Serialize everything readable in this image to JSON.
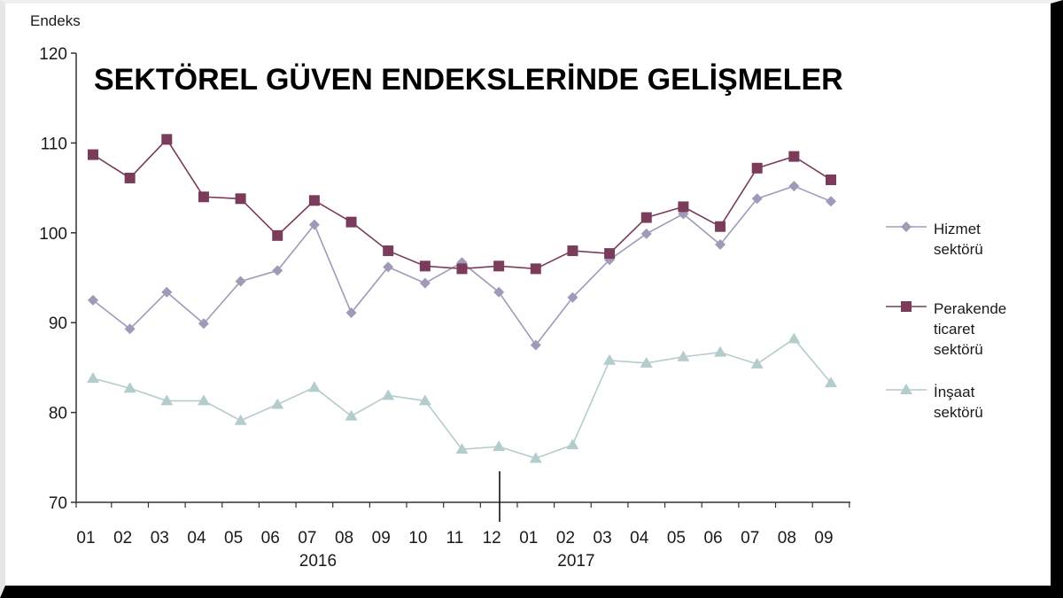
{
  "chart_data": {
    "type": "line",
    "title": "SEKTÖREL GÜVEN ENDEKSLERİNDE GELİŞMELER",
    "ylabel": "Endeks",
    "xlabel": "",
    "ylim": [
      70,
      120
    ],
    "yticks": [
      70,
      80,
      90,
      100,
      110,
      120
    ],
    "grid": false,
    "legend_position": "right",
    "categories": [
      "01",
      "02",
      "03",
      "04",
      "05",
      "06",
      "07",
      "08",
      "09",
      "10",
      "11",
      "12",
      "01",
      "02",
      "03",
      "04",
      "05",
      "06",
      "07",
      "08",
      "09"
    ],
    "year_labels": [
      {
        "label": "2016",
        "category_index": 6
      },
      {
        "label": "2017",
        "category_index": 13
      }
    ],
    "series": [
      {
        "name": "Hizmet sektörü",
        "legend_lines": [
          "Hizmet",
          "sektörü"
        ],
        "color": "#a09ab8",
        "marker": "diamond",
        "values": [
          92.5,
          89.3,
          93.4,
          89.9,
          94.6,
          95.8,
          100.9,
          91.1,
          96.2,
          94.4,
          96.7,
          93.4,
          87.5,
          92.8,
          97.0,
          99.9,
          102.1,
          98.7,
          103.8,
          105.2,
          103.5
        ]
      },
      {
        "name": "Perakende ticaret sektörü",
        "legend_lines": [
          "Perakende",
          "ticaret",
          "sektörü"
        ],
        "color": "#7b3b5a",
        "marker": "square",
        "values": [
          108.7,
          106.1,
          110.4,
          104.0,
          103.8,
          99.7,
          103.6,
          101.2,
          98.0,
          96.3,
          96.0,
          96.3,
          96.0,
          98.0,
          97.7,
          101.7,
          102.9,
          100.7,
          107.2,
          108.5,
          105.9
        ]
      },
      {
        "name": "İnşaat sektörü",
        "legend_lines": [
          "İnşaat",
          "sektörü"
        ],
        "color": "#b5cccd",
        "marker": "triangle",
        "values": [
          83.8,
          82.7,
          81.3,
          81.3,
          79.1,
          80.9,
          82.8,
          79.6,
          81.9,
          81.3,
          75.9,
          76.2,
          74.9,
          76.4,
          85.8,
          85.5,
          86.2,
          86.7,
          85.4,
          88.2,
          83.3
        ]
      }
    ]
  }
}
